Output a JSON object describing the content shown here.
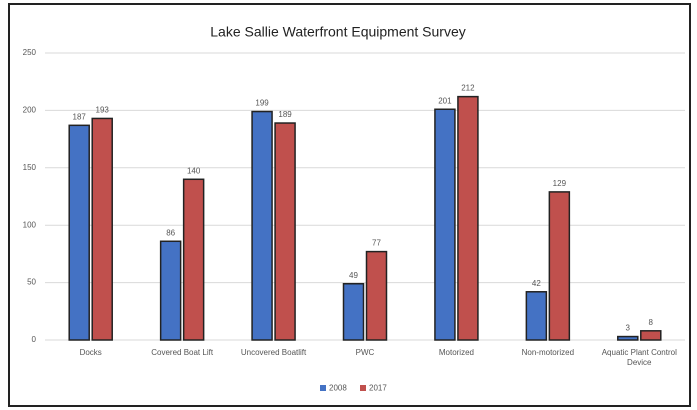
{
  "chart_data": {
    "type": "bar",
    "title": "Lake Sallie Waterfront Equipment Survey",
    "categories": [
      "Docks",
      "Covered Boat Lift",
      "Uncovered Boatlift",
      "PWC",
      "Motorized",
      "Non-motorized",
      "Aquatic Plant Control Device"
    ],
    "series": [
      {
        "name": "2008",
        "color": "#4472c4",
        "values": [
          187,
          86,
          199,
          49,
          201,
          42,
          3
        ]
      },
      {
        "name": "2017",
        "color": "#c0504d",
        "values": [
          193,
          140,
          189,
          77,
          212,
          129,
          8
        ]
      }
    ],
    "ylim": [
      0,
      250
    ],
    "yticks": [
      0,
      50,
      100,
      150,
      200,
      250
    ],
    "grid": true,
    "legend": "bottom"
  }
}
